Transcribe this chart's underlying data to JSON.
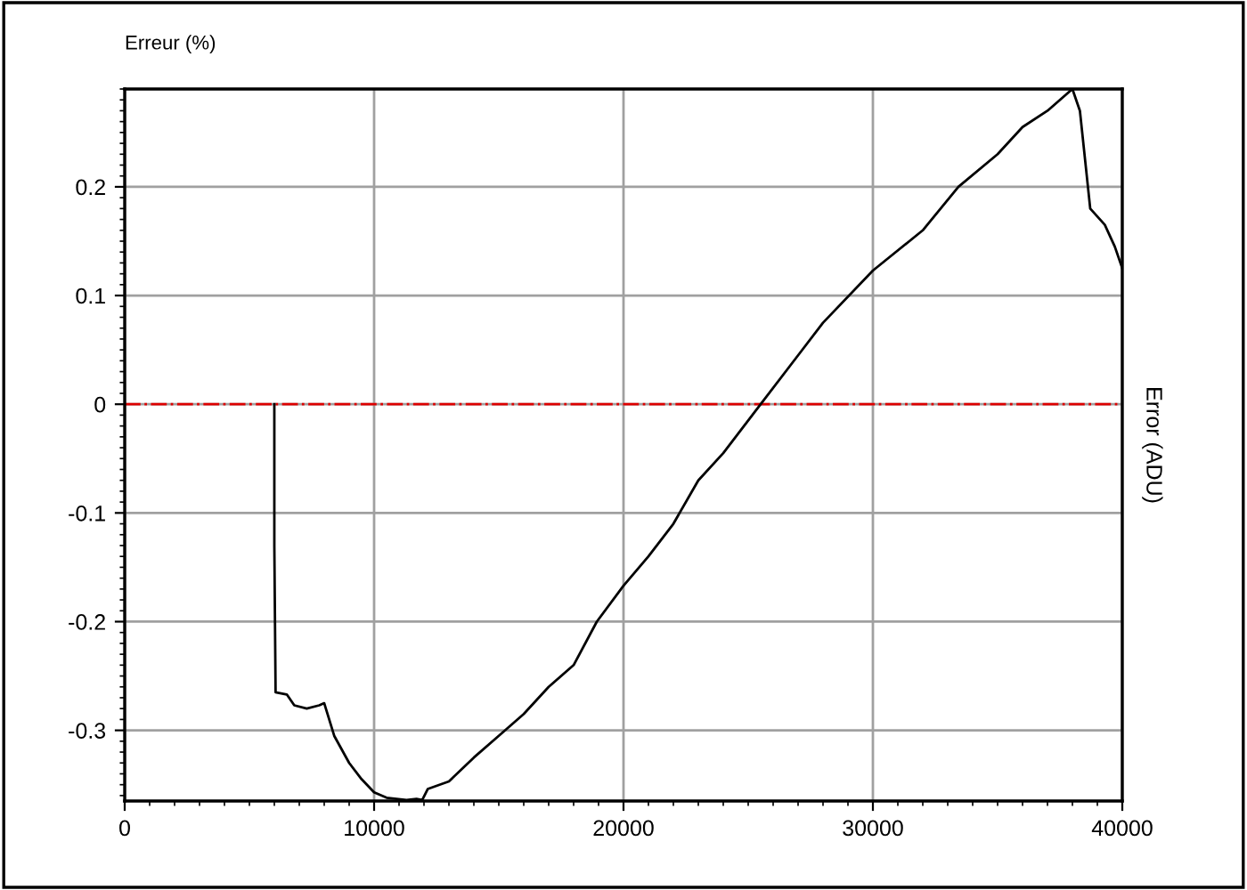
{
  "chart_data": {
    "type": "line",
    "ylabel": "Erreur (%)",
    "y2label": "Error (ADU)",
    "series": [
      {
        "color": "#000000",
        "x": [
          6000,
          6000,
          6050,
          6500,
          6800,
          7300,
          7800,
          8000,
          8400,
          9000,
          9500,
          10000,
          10500,
          11300,
          11700,
          11930,
          12150,
          13000,
          14000,
          15000,
          16000,
          17000,
          18000,
          18930,
          20000,
          21000,
          22000,
          23000,
          24000,
          25500,
          27000,
          28000,
          30000,
          32000,
          33430,
          35000,
          36000,
          37000,
          38000,
          38300,
          38714,
          39300,
          39700,
          40000
        ],
        "values": [
          0,
          -0.13,
          -0.265,
          -0.267,
          -0.277,
          -0.28,
          -0.277,
          -0.275,
          -0.305,
          -0.33,
          -0.345,
          -0.357,
          -0.362,
          -0.364,
          -0.363,
          -0.364,
          -0.354,
          -0.347,
          -0.325,
          -0.305,
          -0.285,
          -0.26,
          -0.24,
          -0.2,
          -0.167,
          -0.14,
          -0.11,
          -0.07,
          -0.045,
          0,
          0.045,
          0.075,
          0.123,
          0.16,
          0.2,
          0.23,
          0.255,
          0.27,
          0.29,
          0.27,
          0.18,
          0.165,
          0.145,
          0.125
        ]
      }
    ],
    "xlim": [
      0,
      40000
    ],
    "ylim": [
      -0.365,
      0.29
    ],
    "xticks": [
      0,
      10000,
      20000,
      30000,
      40000
    ],
    "yticks": [
      -0.3,
      -0.2,
      -0.1,
      0,
      0.1,
      0.2
    ],
    "ref_lines": [
      {
        "axis": "y",
        "value": 0,
        "color": "#dd0000",
        "line_style": "dashdot"
      }
    ],
    "grid": true,
    "legend": false,
    "marker": "none",
    "line_style": "solid"
  }
}
